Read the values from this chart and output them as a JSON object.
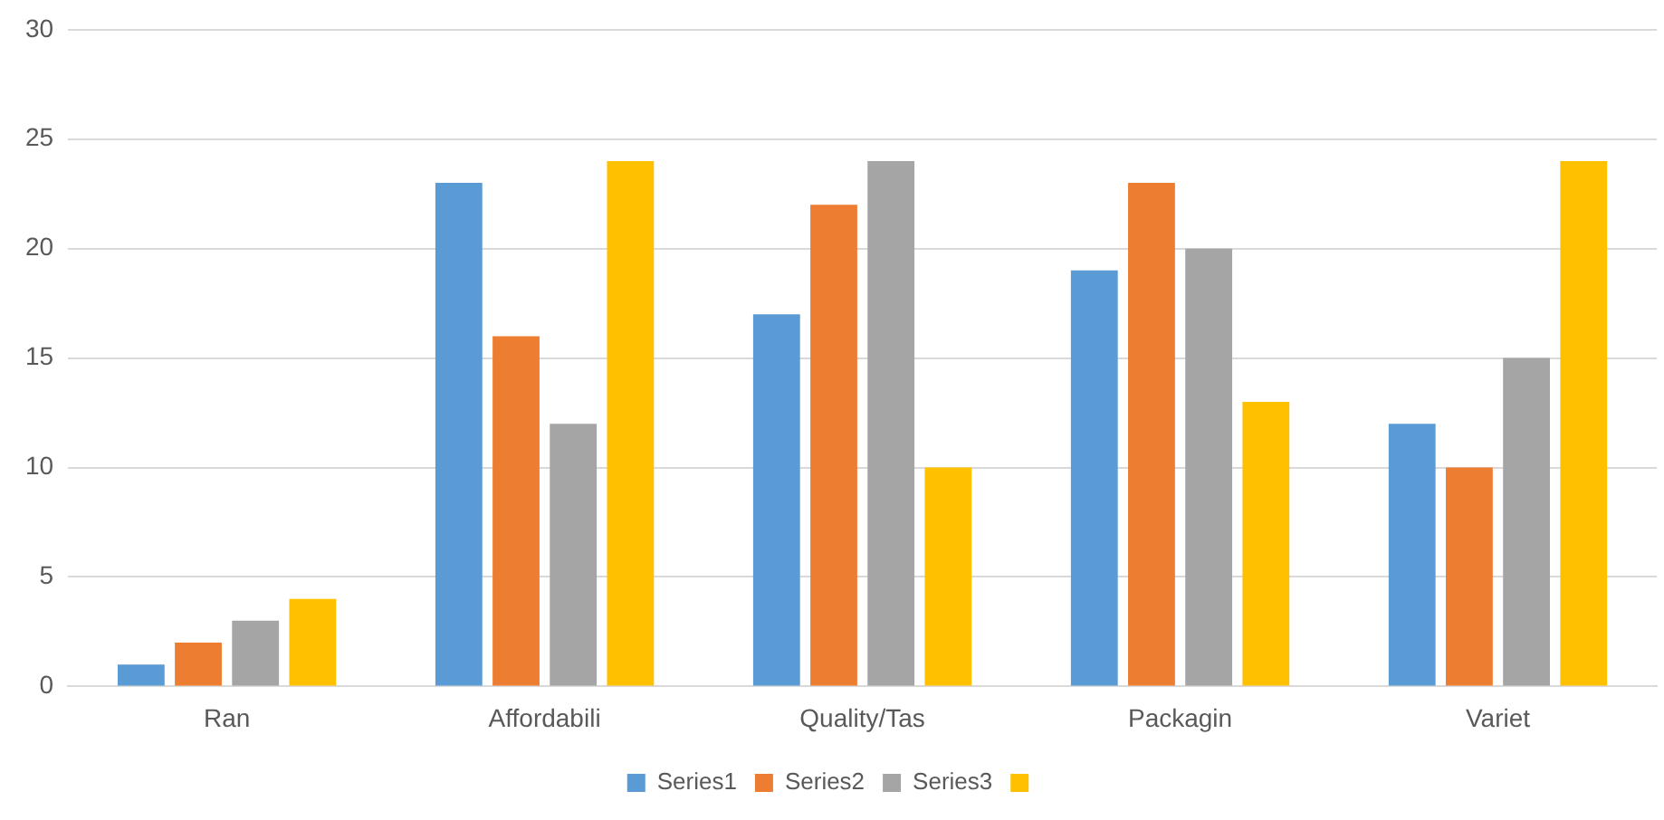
{
  "chart_data": {
    "type": "bar",
    "categories": [
      "Ran",
      "Affordabili",
      "Quality/Tas",
      "Packagin",
      "Variet"
    ],
    "series": [
      {
        "name": "Series1",
        "color": "#5b9bd5",
        "values": [
          1,
          23,
          17,
          19,
          12
        ]
      },
      {
        "name": "Series2",
        "color": "#ed7d31",
        "values": [
          2,
          16,
          22,
          23,
          10
        ]
      },
      {
        "name": "Series3",
        "color": "#a5a5a5",
        "values": [
          3,
          12,
          24,
          20,
          15
        ]
      },
      {
        "color": "#ffc000",
        "values": [
          4,
          24,
          10,
          13,
          24
        ]
      }
    ],
    "ylim": [
      0,
      30
    ],
    "yticks": [
      0,
      5,
      10,
      15,
      20,
      25,
      30
    ],
    "grid": "y",
    "legend": "bottom"
  }
}
